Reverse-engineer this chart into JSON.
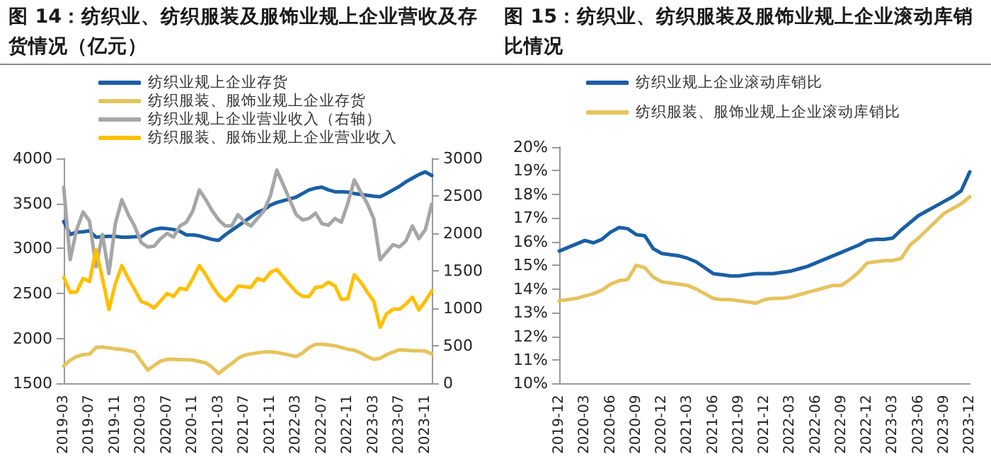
{
  "chart_data": [
    {
      "type": "line",
      "title": "图 14：纺织业、纺织服装及服饰业规上企业营收及存货情况（亿元）",
      "categories": [
        "2019-03",
        null,
        null,
        null,
        "2019-07",
        null,
        null,
        null,
        "2019-11",
        null,
        null,
        null,
        "2020-03",
        null,
        null,
        null,
        "2020-07",
        null,
        null,
        null,
        "2020-11",
        null,
        null,
        null,
        "2021-03",
        null,
        null,
        null,
        "2021-07",
        null,
        null,
        null,
        "2021-11",
        null,
        null,
        null,
        "2022-03",
        null,
        null,
        null,
        "2022-07",
        null,
        null,
        null,
        "2022-11",
        null,
        null,
        null,
        "2023-03",
        null,
        null,
        null,
        "2023-07",
        null,
        null,
        null,
        "2023-11",
        null
      ],
      "series": [
        {
          "name": "纺织业规上企业存货",
          "color": "#1a5fa4",
          "values": [
            3300,
            3155,
            3180,
            3185,
            3195,
            3125,
            3130,
            3135,
            3135,
            3125,
            3125,
            3130,
            3130,
            3180,
            3210,
            3225,
            3220,
            3210,
            3190,
            3150,
            3150,
            3140,
            3120,
            3100,
            3090,
            3150,
            3200,
            3250,
            3300,
            3350,
            3400,
            3430,
            3480,
            3510,
            3530,
            3550,
            3570,
            3610,
            3650,
            3670,
            3680,
            3650,
            3630,
            3630,
            3625,
            3610,
            3600,
            3590,
            3580,
            3575,
            3610,
            3650,
            3690,
            3740,
            3780,
            3820,
            3850,
            3810
          ]
        },
        {
          "name": "纺织服装、服饰业规上企业存货",
          "color": "#e6c35c",
          "values": [
            1696,
            1760,
            1800,
            1820,
            1827,
            1900,
            1905,
            1895,
            1885,
            1880,
            1865,
            1850,
            1750,
            1650,
            1700,
            1750,
            1768,
            1770,
            1765,
            1765,
            1760,
            1745,
            1730,
            1680,
            1610,
            1670,
            1720,
            1780,
            1815,
            1830,
            1840,
            1850,
            1851,
            1845,
            1830,
            1815,
            1800,
            1840,
            1900,
            1935,
            1935,
            1930,
            1920,
            1900,
            1880,
            1870,
            1840,
            1800,
            1768,
            1780,
            1820,
            1850,
            1875,
            1870,
            1865,
            1865,
            1860,
            1830
          ]
        },
        {
          "name": "纺织业规上企业营业收入（右轴）",
          "color": "#a6a6a6",
          "axis": "y2",
          "values": [
            2614,
            1650,
            2050,
            2286,
            2164,
            1557,
            1986,
            1464,
            2130,
            2450,
            2250,
            2093,
            1879,
            1820,
            1830,
            1930,
            2000,
            1950,
            2100,
            2150,
            2300,
            2579,
            2450,
            2300,
            2180,
            2100,
            2100,
            2250,
            2150,
            2100,
            2200,
            2300,
            2500,
            2843,
            2650,
            2450,
            2250,
            2180,
            2200,
            2270,
            2130,
            2110,
            2200,
            2150,
            2400,
            2714,
            2550,
            2400,
            2200,
            1650,
            1750,
            1850,
            1820,
            1900,
            2100,
            1930,
            2050,
            2393
          ]
        },
        {
          "name": "纺织服装、服饰业规上企业营业收入",
          "color": "#ffc000",
          "axis": "y2",
          "values": [
            1414,
            1214,
            1220,
            1400,
            1360,
            1786,
            1400,
            986,
            1330,
            1571,
            1400,
            1250,
            1093,
            1060,
            1007,
            1100,
            1200,
            1160,
            1270,
            1250,
            1400,
            1571,
            1450,
            1300,
            1179,
            1100,
            1180,
            1300,
            1290,
            1280,
            1400,
            1370,
            1480,
            1520,
            1420,
            1320,
            1220,
            1160,
            1160,
            1280,
            1290,
            1350,
            1300,
            1120,
            1130,
            1450,
            1350,
            1220,
            1100,
            750,
            930,
            990,
            990,
            1060,
            1150,
            980,
            1100,
            1236
          ]
        }
      ],
      "ylim": [
        1500,
        4000
      ],
      "yticks": [
        1500,
        2000,
        2500,
        3000,
        3500,
        4000
      ],
      "y2lim": [
        0,
        3000
      ],
      "y2ticks": [
        0,
        500,
        1000,
        1500,
        2000,
        2500,
        3000
      ],
      "legend": "top",
      "marker": "none",
      "line_style": "solid",
      "grid": false
    },
    {
      "type": "line",
      "title": "图 15：纺织业、纺织服装及服饰业规上企业滚动库销比情况",
      "categories": [
        "2019-12",
        null,
        null,
        "2020-03",
        null,
        null,
        "2020-06",
        null,
        null,
        "2020-09",
        null,
        null,
        "2020-12",
        null,
        null,
        "2021-03",
        null,
        null,
        "2021-06",
        null,
        null,
        "2021-09",
        null,
        null,
        "2021-12",
        null,
        null,
        "2022-03",
        null,
        null,
        "2022-06",
        null,
        null,
        "2022-09",
        null,
        null,
        "2022-12",
        null,
        null,
        "2023-03",
        null,
        null,
        "2023-06",
        null,
        null,
        "2023-09",
        null,
        null,
        "2023-12"
      ],
      "series": [
        {
          "name": "纺织业规上企业滚动库销比",
          "color": "#1a5fa4",
          "values": [
            15.6,
            15.75,
            15.9,
            16.05,
            15.95,
            16.1,
            16.4,
            16.6,
            16.55,
            16.3,
            16.25,
            15.7,
            15.5,
            15.45,
            15.4,
            15.3,
            15.15,
            14.9,
            14.65,
            14.6,
            14.55,
            14.55,
            14.6,
            14.65,
            14.65,
            14.65,
            14.7,
            14.75,
            14.85,
            14.95,
            15.1,
            15.25,
            15.4,
            15.55,
            15.7,
            15.85,
            16.05,
            16.1,
            16.1,
            16.15,
            16.5,
            16.8,
            17.1,
            17.3,
            17.5,
            17.7,
            17.9,
            18.15,
            18.95
          ]
        },
        {
          "name": "纺织服装、服饰业规上企业滚动库销比",
          "color": "#e6c35c",
          "values": [
            13.5,
            13.55,
            13.6,
            13.7,
            13.8,
            13.95,
            14.2,
            14.35,
            14.4,
            15.0,
            14.9,
            14.5,
            14.3,
            14.25,
            14.2,
            14.15,
            14.0,
            13.8,
            13.6,
            13.55,
            13.55,
            13.5,
            13.45,
            13.4,
            13.55,
            13.6,
            13.6,
            13.65,
            13.75,
            13.85,
            13.95,
            14.05,
            14.15,
            14.15,
            14.4,
            14.7,
            15.1,
            15.15,
            15.2,
            15.2,
            15.3,
            15.85,
            16.15,
            16.5,
            16.85,
            17.2,
            17.4,
            17.6,
            17.9
          ]
        }
      ],
      "ylim": [
        10,
        20
      ],
      "yticks": [
        {
          "value": 10,
          "label": "10%"
        },
        {
          "value": 11,
          "label": "11%"
        },
        {
          "value": 12,
          "label": "12%"
        },
        {
          "value": 13,
          "label": "13%"
        },
        {
          "value": 14,
          "label": "14%"
        },
        {
          "value": 15,
          "label": "15%"
        },
        {
          "value": 16,
          "label": "16%"
        },
        {
          "value": 17,
          "label": "17%"
        },
        {
          "value": 18,
          "label": "18%"
        },
        {
          "value": 19,
          "label": "19%"
        },
        {
          "value": 20,
          "label": "20%"
        }
      ],
      "legend": "top",
      "marker": "none",
      "line_style": "solid",
      "grid": false
    }
  ]
}
